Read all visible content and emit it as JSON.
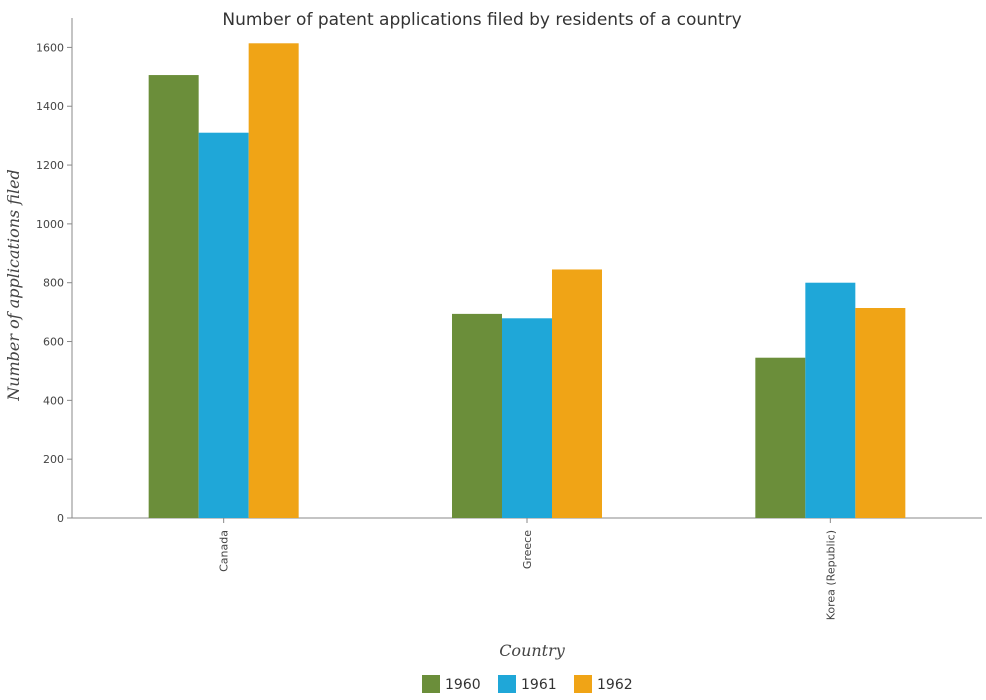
{
  "chart_data": {
    "type": "bar",
    "title": "Number of patent applications filed by residents of a country",
    "xlabel": "Country",
    "ylabel": "Number of applications filed",
    "categories": [
      "Canada",
      "Greece",
      "Korea (Republic)"
    ],
    "series": [
      {
        "name": "1960",
        "color": "#6b8e3a",
        "values": [
          1506,
          694,
          545
        ]
      },
      {
        "name": "1961",
        "color": "#1fa7d8",
        "values": [
          1310,
          679,
          800
        ]
      },
      {
        "name": "1962",
        "color": "#f0a416",
        "values": [
          1614,
          845,
          714
        ]
      }
    ],
    "ylim": [
      0,
      1700
    ],
    "yticks": [
      0,
      200,
      400,
      600,
      800,
      1000,
      1200,
      1400,
      1600
    ],
    "grid": false,
    "legend_position": "bottom-center"
  }
}
